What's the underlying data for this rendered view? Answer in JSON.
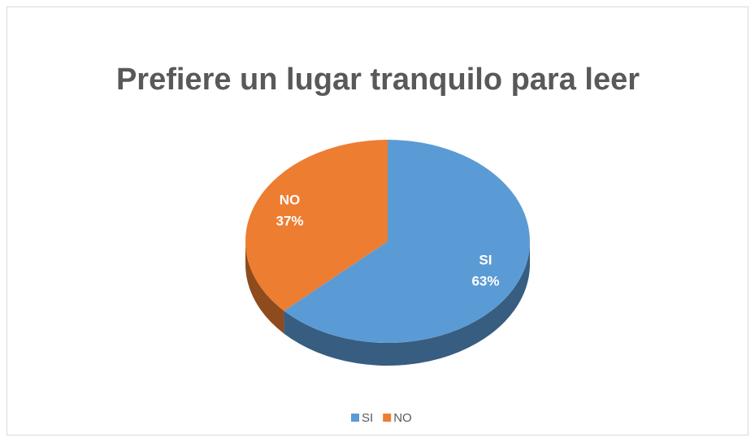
{
  "chart_data": {
    "type": "pie",
    "title": "Prefiere un lugar tranquilo para leer",
    "categories": [
      "SI",
      "NO"
    ],
    "values": [
      63,
      37
    ],
    "value_labels": [
      "63%",
      "37%"
    ],
    "colors": [
      "#5b9bd5",
      "#ed7d31"
    ],
    "legend": "bottom"
  }
}
